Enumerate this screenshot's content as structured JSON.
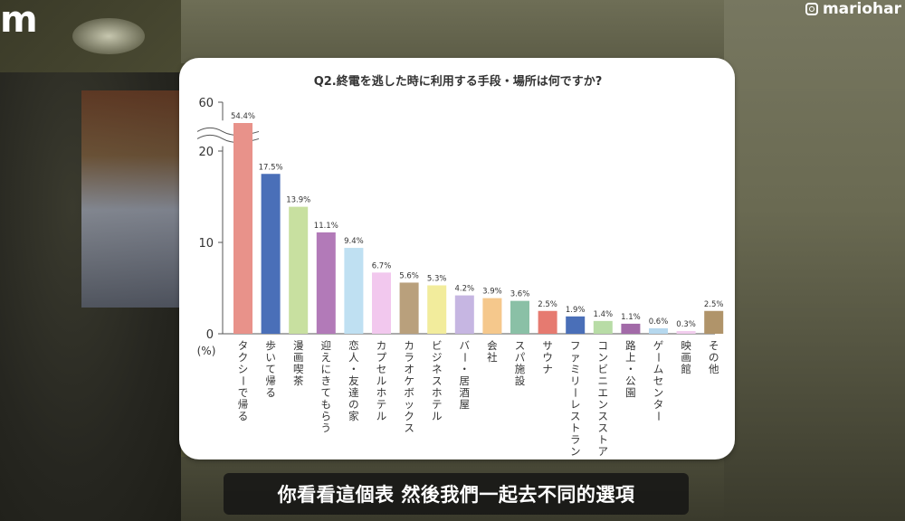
{
  "logo_left": "m",
  "logo_right": "mariohar",
  "subtitle": "你看看這個表 然後我們一起去不同的選項",
  "chart_data": {
    "type": "bar",
    "title": "Q2.終電を逃した時に利用する手段・場所は何ですか?",
    "ylabel": "(%)",
    "ylim": [
      0,
      60
    ],
    "yticks": [
      0,
      10,
      20,
      60
    ],
    "axis_break": true,
    "categories": [
      "タクシーで帰る",
      "歩いて帰る",
      "漫画喫茶",
      "迎えにきてもらう",
      "恋人・友達の家",
      "カプセルホテル",
      "カラオケボックス",
      "ビジネスホテル",
      "バー・居酒屋",
      "会社",
      "スパ施設",
      "サウナ",
      "ファミリーレストラン",
      "コンビニエンスストア",
      "路上・公園",
      "ゲームセンター",
      "映画館",
      "その他"
    ],
    "values": [
      54.4,
      17.5,
      13.9,
      11.1,
      9.4,
      6.7,
      5.6,
      5.3,
      4.2,
      3.9,
      3.6,
      2.5,
      1.9,
      1.4,
      1.1,
      0.6,
      0.3,
      2.5
    ],
    "value_labels": [
      "54.4%",
      "17.5%",
      "13.9%",
      "11.1%",
      "9.4%",
      "6.7%",
      "5.6%",
      "5.3%",
      "4.2%",
      "3.9%",
      "3.6%",
      "2.5%",
      "1.9%",
      "1.4%",
      "1.1%",
      "0.6%",
      "0.3%",
      "2.5%"
    ],
    "colors": [
      "#e8928a",
      "#4a6fb8",
      "#c8e0a0",
      "#b27ab8",
      "#bfe0f2",
      "#f2c8ee",
      "#b9a07c",
      "#f2ec9c",
      "#c6b6e2",
      "#f5c88c",
      "#8ac0a6",
      "#e67a70",
      "#4a6fb8",
      "#b8dca6",
      "#a26aa8",
      "#b6d8ee",
      "#f2cdee",
      "#b0946a"
    ]
  }
}
